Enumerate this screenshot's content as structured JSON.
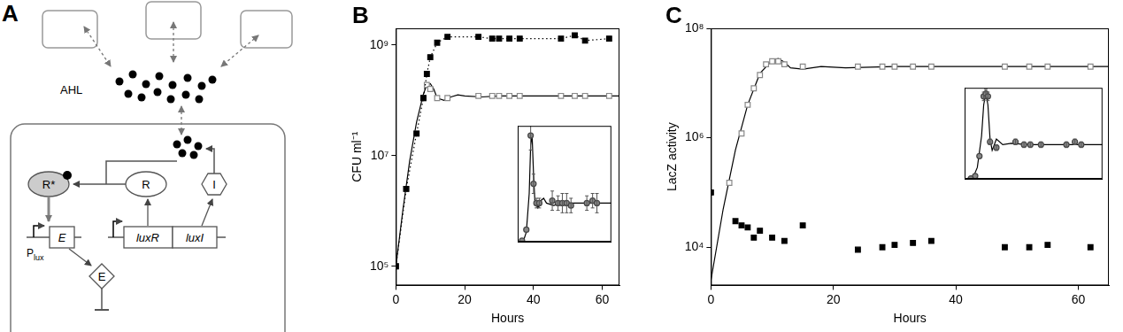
{
  "diagram": {
    "panel": "A",
    "signal": "AHL",
    "activated_receptor": "R*",
    "receptor": "R",
    "synthase": "I",
    "genes": [
      "luxR",
      "luxI"
    ],
    "promoter": "P",
    "promoter_subscript": "lux",
    "effector_gene": "E",
    "effector": "E"
  },
  "chart_data": [
    {
      "title": "B",
      "type": "scatter",
      "log": "y",
      "grid": false,
      "xlabel": "Hours",
      "ylabel": "CFU ml⁻¹",
      "xlim": [
        0,
        65
      ],
      "xticks": [
        0,
        20,
        40,
        60
      ],
      "ylim": [
        45000,
        2000000000
      ],
      "yticks": [
        {
          "value": 100000,
          "label": "10⁵"
        },
        {
          "value": 10000000,
          "label": "10⁷"
        },
        {
          "value": 1000000000,
          "label": "10⁹"
        }
      ],
      "series": [
        {
          "color": "#000000",
          "marker": "square",
          "line_style": "dotted",
          "x": [
            0,
            3,
            6,
            8,
            9,
            10,
            12,
            15,
            24,
            28,
            30,
            33,
            36,
            48,
            52,
            55,
            62
          ],
          "values": [
            100000,
            2500000,
            25000000,
            110000000,
            300000000,
            600000000,
            1100000000,
            1400000000,
            1400000000,
            1300000000,
            1300000000,
            1300000000,
            1300000000,
            1300000000,
            1500000000,
            1200000000,
            1300000000
          ]
        },
        {
          "color": "#888888",
          "marker": "square_open",
          "line_style": "none",
          "x": [
            0,
            3,
            6,
            8,
            9,
            10,
            12,
            15,
            24,
            28,
            30,
            33,
            36,
            48,
            52,
            55,
            62
          ],
          "values": [
            100000,
            2500000,
            25000000,
            110000000,
            190000000,
            160000000,
            110000000,
            110000000,
            120000000,
            120000000,
            120000000,
            120000000,
            120000000,
            120000000,
            120000000,
            120000000,
            120000000
          ]
        },
        {
          "color": "#000000",
          "marker": "none",
          "line_style": "solid",
          "x": [
            0,
            2,
            4,
            6,
            8,
            9,
            10,
            11,
            12,
            14,
            16,
            18,
            20,
            25,
            30,
            40,
            50,
            65
          ],
          "values": [
            100000,
            1000000,
            8000000,
            40000000,
            130000000,
            190000000,
            200000000,
            160000000,
            110000000,
            100000000,
            115000000,
            125000000,
            120000000,
            115000000,
            120000000,
            120000000,
            120000000,
            120000000
          ]
        }
      ]
    },
    {
      "type": "scatter",
      "tick_labels": false,
      "grid": false,
      "xlim": [
        0,
        65
      ],
      "ylim": [
        0,
        240000000
      ],
      "series": [
        {
          "color": "#888888",
          "marker": "circle",
          "line_style": "none",
          "x": [
            3,
            6,
            9,
            11,
            13,
            15,
            24,
            28,
            31,
            34,
            37,
            48,
            52,
            55
          ],
          "values": [
            2000000,
            25000000,
            220000000,
            120000000,
            80000000,
            80000000,
            85000000,
            80000000,
            80000000,
            80000000,
            75000000,
            80000000,
            85000000,
            80000000
          ],
          "errors": [
            0,
            0,
            30000000,
            20000000,
            10000000,
            10000000,
            20000000,
            15000000,
            20000000,
            20000000,
            15000000,
            15000000,
            15000000,
            20000000
          ]
        },
        {
          "color": "#000000",
          "marker": "none",
          "line_style": "solid",
          "x": [
            0,
            4,
            6,
            8,
            9,
            10,
            11,
            12,
            14,
            16,
            18,
            20,
            25,
            30,
            40,
            50,
            65
          ],
          "values": [
            0,
            2000000,
            20000000,
            100000000,
            200000000,
            220000000,
            140000000,
            80000000,
            70000000,
            85000000,
            90000000,
            80000000,
            75000000,
            80000000,
            80000000,
            80000000,
            80000000
          ]
        }
      ]
    },
    {
      "title": "C",
      "type": "scatter",
      "log": "y",
      "grid": false,
      "xlabel": "Hours",
      "ylabel": "LacZ activity",
      "xlim": [
        0,
        65
      ],
      "xticks": [
        0,
        20,
        40,
        60
      ],
      "ylim": [
        2000,
        100000000
      ],
      "yticks": [
        {
          "value": 10000,
          "label": "10⁴"
        },
        {
          "value": 1000000,
          "label": "10⁶"
        },
        {
          "value": 100000000,
          "label": "10⁸"
        }
      ],
      "series": [
        {
          "color": "#000000",
          "marker": "square",
          "line_style": "none",
          "x": [
            0,
            4,
            5,
            6,
            7,
            8,
            10,
            12,
            15,
            24,
            28,
            30,
            33,
            36,
            48,
            52,
            55,
            62
          ],
          "values": [
            100000,
            30000,
            25000,
            23000,
            15000,
            20000,
            15000,
            13000,
            25000,
            9000,
            10000,
            11000,
            12000,
            13000,
            10000,
            10000,
            11000,
            10000
          ]
        },
        {
          "color": "#888888",
          "marker": "square_open",
          "line_style": "none",
          "x": [
            3,
            5,
            6,
            7,
            8,
            9,
            10,
            11,
            12,
            15,
            24,
            28,
            30,
            33,
            36,
            48,
            52,
            55,
            62
          ],
          "values": [
            150000,
            1200000,
            4000000,
            8000000,
            14000000,
            22000000,
            25000000,
            25000000,
            22000000,
            20000000,
            20000000,
            20000000,
            20000000,
            20000000,
            20000000,
            20000000,
            20000000,
            20000000,
            20000000
          ]
        },
        {
          "color": "#000000",
          "marker": "none",
          "line_style": "solid",
          "x": [
            0,
            2,
            4,
            6,
            8,
            10,
            11,
            12,
            13,
            15,
            18,
            22,
            30,
            40,
            65
          ],
          "values": [
            2500,
            50000,
            600000,
            4000000,
            15000000,
            26000000,
            28000000,
            24000000,
            19000000,
            18000000,
            20000000,
            19000000,
            20000000,
            20000000,
            20000000
          ]
        }
      ]
    },
    {
      "type": "scatter",
      "tick_labels": false,
      "grid": false,
      "xlim": [
        0,
        65
      ],
      "ylim": [
        0,
        32000000
      ],
      "series": [
        {
          "color": "#888888",
          "marker": "circle",
          "line_style": "none",
          "x": [
            3,
            5,
            7,
            9,
            10,
            11,
            12,
            15,
            24,
            28,
            31,
            36,
            48,
            52,
            55
          ],
          "values": [
            100000,
            1000000,
            8000000,
            29000000,
            30000000,
            29000000,
            13000000,
            11000000,
            13000000,
            12000000,
            12000000,
            12000000,
            12000000,
            13000000,
            12000000
          ],
          "errors": [
            0,
            0,
            0,
            1500000,
            1500000,
            1500000,
            1000000,
            1000000,
            1000000,
            1000000,
            1000000,
            1000000,
            1000000,
            1000000,
            1000000
          ]
        },
        {
          "color": "#000000",
          "marker": "none",
          "line_style": "solid",
          "x": [
            0,
            4,
            6,
            8,
            9,
            10,
            11,
            12,
            13,
            15,
            18,
            22,
            30,
            40,
            65
          ],
          "values": [
            0,
            500000,
            4000000,
            15000000,
            26000000,
            30000000,
            26000000,
            14000000,
            10000000,
            14000000,
            12000000,
            12500000,
            12000000,
            12000000,
            12000000
          ]
        }
      ]
    }
  ]
}
